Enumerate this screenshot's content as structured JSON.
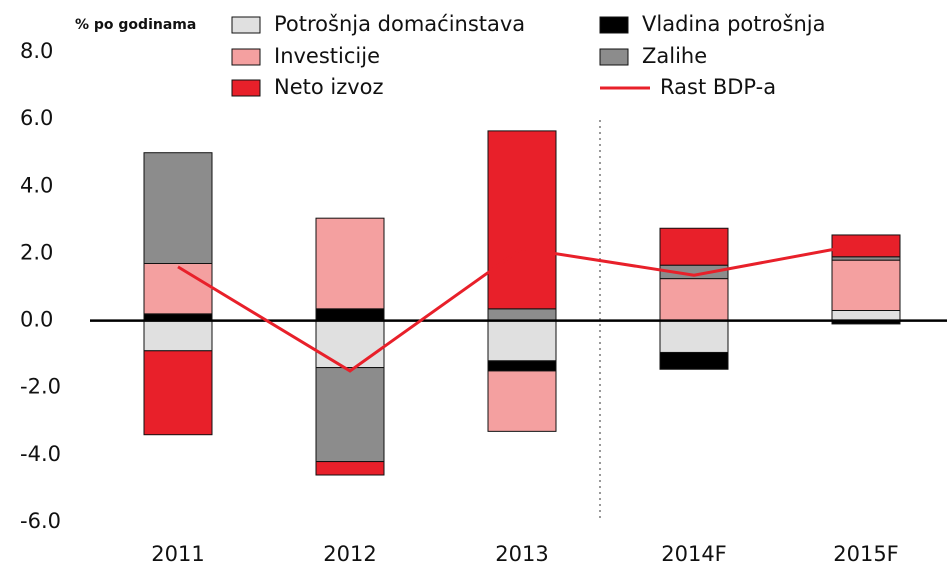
{
  "chart_data": {
    "type": "bar",
    "stacked": true,
    "y_unit_label": "% po godinama",
    "categories": [
      "2011",
      "2012",
      "2013",
      "2014F",
      "2015F"
    ],
    "series": [
      {
        "name": "Potrošnja domaćinstava",
        "color": "#e0e0e0",
        "values": [
          -0.9,
          -1.4,
          -1.2,
          -0.95,
          0.3
        ]
      },
      {
        "name": "Vladina potrošnja",
        "color": "#000000",
        "values": [
          0.2,
          0.35,
          -0.3,
          -0.5,
          -0.1
        ]
      },
      {
        "name": "Investicije",
        "color": "#f4a0a0",
        "values": [
          1.5,
          2.7,
          -1.8,
          1.25,
          1.5
        ]
      },
      {
        "name": "Zalihe",
        "color": "#8c8c8c",
        "values": [
          3.3,
          -2.8,
          0.35,
          0.4,
          0.1
        ]
      },
      {
        "name": "Neto izvoz",
        "color": "#e8202a",
        "values": [
          -2.5,
          -0.4,
          5.3,
          1.1,
          0.65
        ]
      },
      {
        "name": "Rast BDP-a",
        "type": "line",
        "color": "#e8202a",
        "values": [
          1.6,
          -1.5,
          2.15,
          1.35,
          2.3
        ]
      }
    ],
    "ylim": [
      -6,
      8
    ],
    "yticks": [
      {
        "value": -6,
        "label": "-6.0"
      },
      {
        "value": -4,
        "label": "-4.0"
      },
      {
        "value": -2,
        "label": "-2.0"
      },
      {
        "value": 0,
        "label": "0.0"
      },
      {
        "value": 2,
        "label": "2.0"
      },
      {
        "value": 4,
        "label": "4.0"
      },
      {
        "value": 6,
        "label": "6.0"
      },
      {
        "value": 8,
        "label": "8.0"
      }
    ],
    "grid": false
  }
}
